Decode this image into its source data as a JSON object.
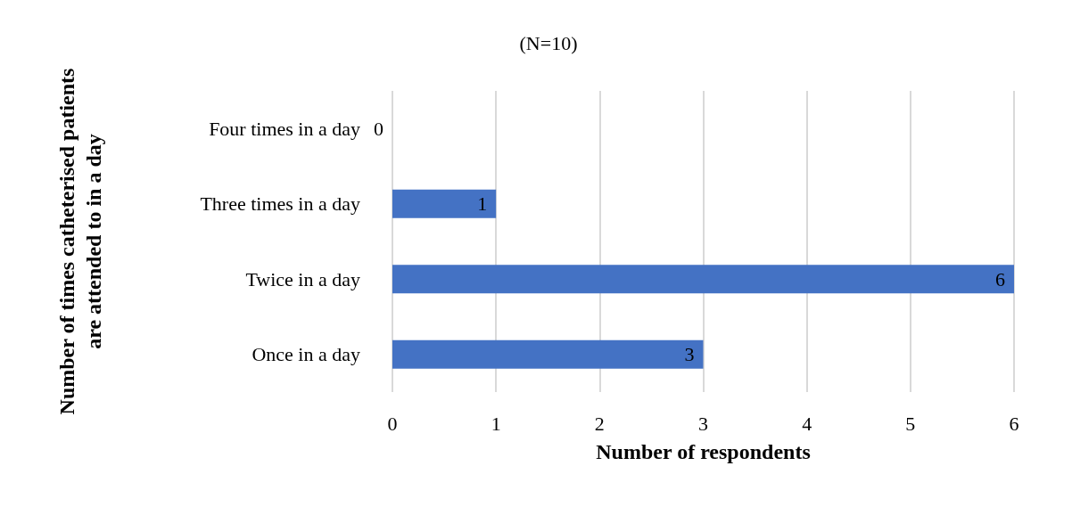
{
  "chart_data": {
    "type": "bar",
    "orientation": "horizontal",
    "title": "(N=10)",
    "xlabel": "Number of respondents",
    "ylabel": "Number of times catheterised patients are attended to in a day",
    "categories": [
      "Four times in a day",
      "Three times in a day",
      "Twice in a day",
      "Once in a day"
    ],
    "values": [
      0,
      1,
      6,
      3
    ],
    "color": "#4472c4",
    "xlim": [
      0,
      6
    ],
    "xticks": [
      0,
      1,
      2,
      3,
      4,
      5,
      6
    ],
    "grid": "x",
    "data_labels": true
  }
}
